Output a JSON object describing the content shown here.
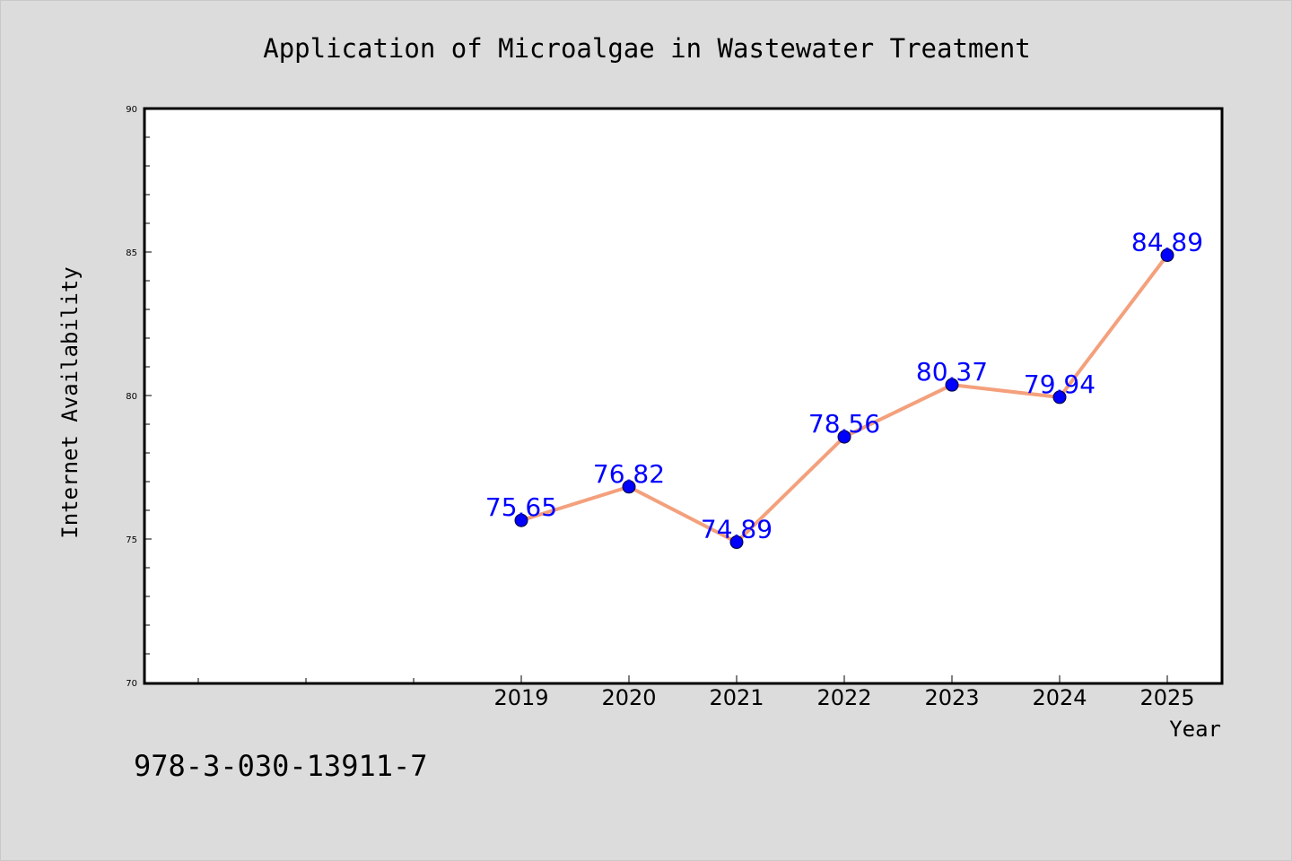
{
  "colors": {
    "background": "#dcdcdc",
    "plot_background": "#ffffff",
    "line": "#f4a07c",
    "marker": "#0000ff",
    "label": "#0000ff",
    "text": "#000000"
  },
  "footer_code": "978-3-030-13911-7",
  "chart_data": {
    "type": "line",
    "title": "Application of Microalgae in Wastewater Treatment",
    "xlabel": "Year",
    "ylabel": "Internet Availability",
    "x": [
      "2019",
      "2020",
      "2021",
      "2022",
      "2023",
      "2024",
      "2025"
    ],
    "series": [
      {
        "values": [
          75.65,
          76.82,
          74.89,
          78.56,
          80.37,
          79.94,
          84.89
        ],
        "labels": [
          "75.65",
          "76.82",
          "74.89",
          "78.56",
          "80.37",
          "79.94",
          "84.89"
        ]
      }
    ],
    "ylim": [
      70,
      90
    ],
    "yticks": [
      "70",
      "75",
      "80",
      "85",
      "90"
    ],
    "grid": false,
    "legend": "none"
  }
}
